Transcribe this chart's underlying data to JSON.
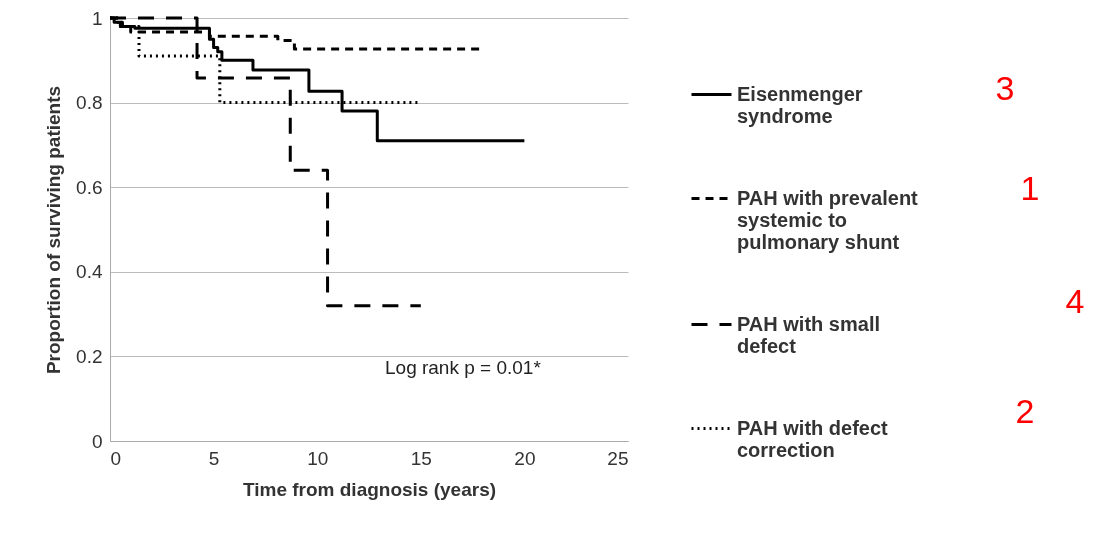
{
  "chart_data": {
    "type": "step",
    "xlabel": "Time from diagnosis (years)",
    "ylabel": "Proportion of surviving patients",
    "xlim": [
      0,
      25
    ],
    "xticks": [
      0,
      5,
      10,
      15,
      20,
      25
    ],
    "ylim": [
      0,
      1
    ],
    "yticks": [
      0,
      0.2,
      0.4,
      0.6,
      0.8,
      1
    ],
    "grid": "y",
    "legend": "right",
    "marker": "none",
    "series": [
      {
        "name": "Eisenmenger syndrome",
        "color": "#000000",
        "line_style": "solid",
        "x": [
          0,
          0.2,
          0.6,
          1.2,
          4.8,
          5.0,
          5.2,
          5.4,
          6.9,
          9.6,
          11.2,
          12.9,
          20
        ],
        "values": [
          1,
          0.99,
          0.98,
          0.976,
          0.95,
          0.93,
          0.92,
          0.9,
          0.877,
          0.827,
          0.78,
          0.71,
          0.71
        ]
      },
      {
        "name": "PAH with prevalent systemic to pulmonary shunt",
        "color": "#000000",
        "line_style": "dashed",
        "x": [
          0,
          0.5,
          1.0,
          4.8,
          8.1,
          8.9,
          17.9
        ],
        "values": [
          1,
          0.98,
          0.967,
          0.957,
          0.947,
          0.927,
          0.927
        ]
      },
      {
        "name": "PAH with small defect",
        "color": "#000000",
        "line_style": "dashed",
        "x": [
          0,
          4.2,
          8.7,
          10.5,
          15
        ],
        "values": [
          1,
          0.858,
          0.64,
          0.32,
          0.32
        ]
      },
      {
        "name": "PAH with defect correction",
        "color": "#000000",
        "line_style": "dotted",
        "x": [
          0,
          0.4,
          1.4,
          5.3,
          15
        ],
        "values": [
          1,
          0.98,
          0.91,
          0.8,
          0.8
        ]
      }
    ],
    "annotations": [
      "Log rank p = 0.01*",
      "3",
      "1",
      "4",
      "2"
    ]
  }
}
